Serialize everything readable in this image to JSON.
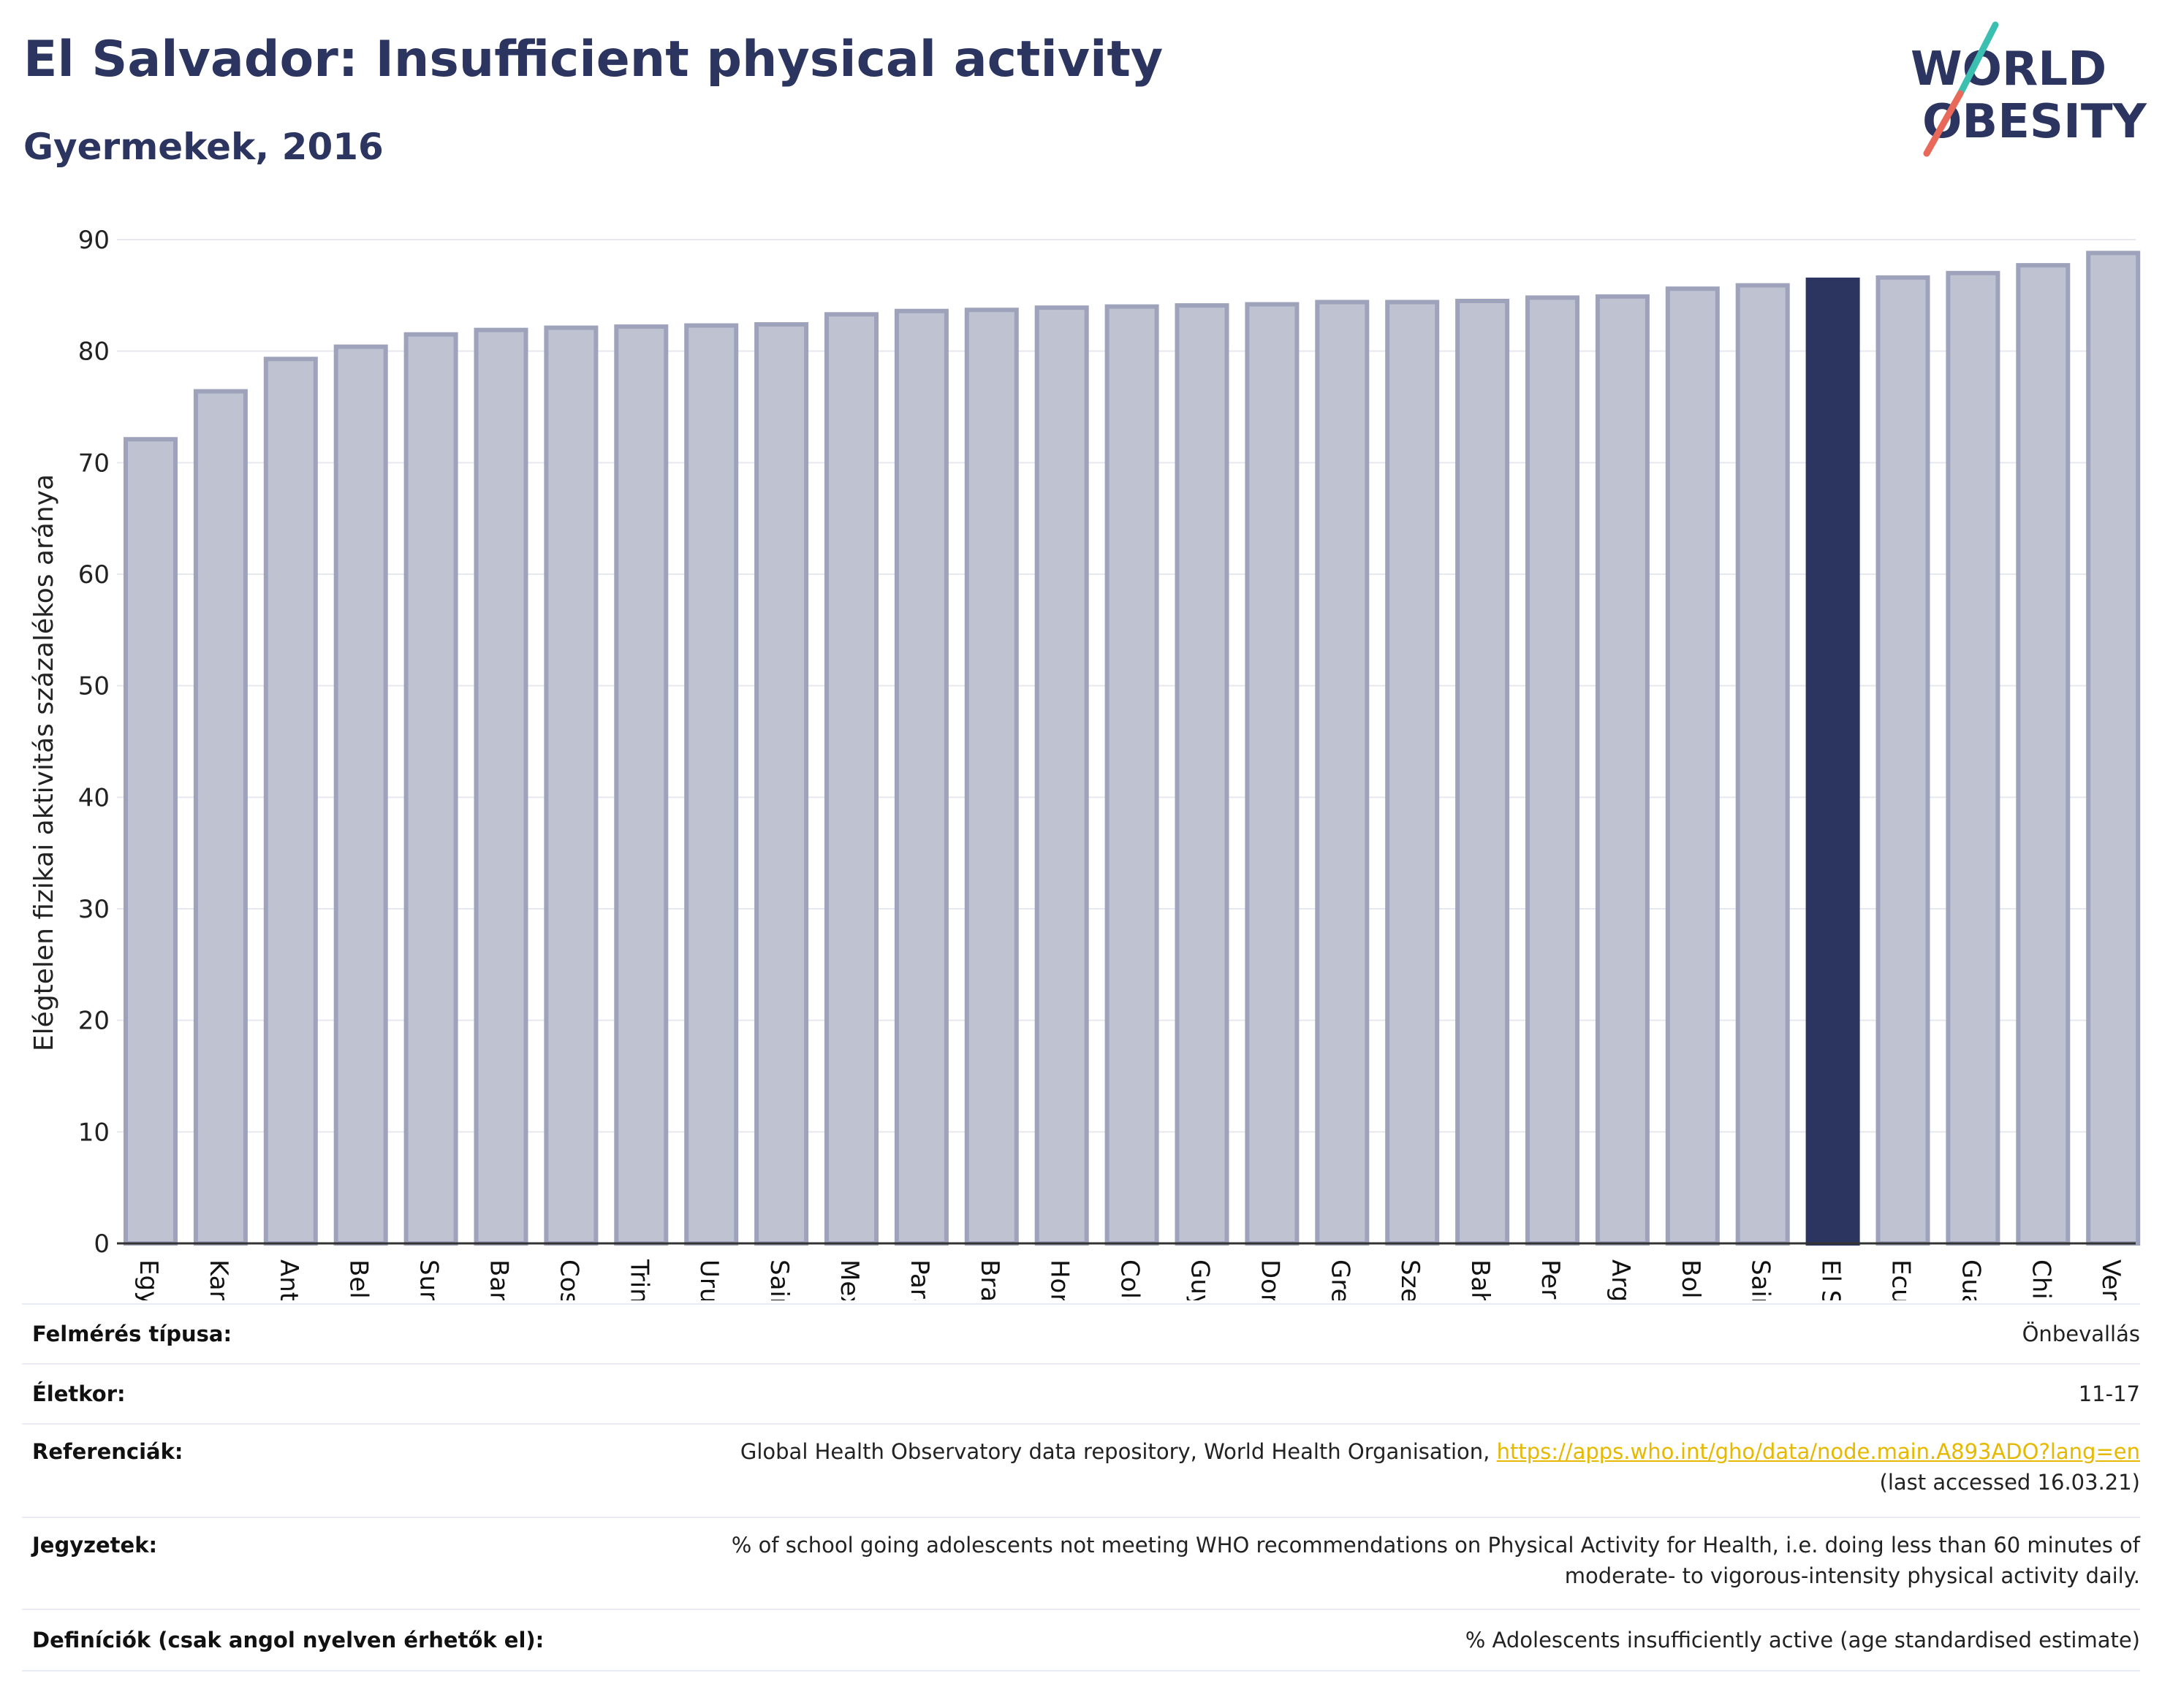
{
  "header": {
    "title": "El Salvador: Insufficient physical activity",
    "subtitle": "Gyermekek, 2016"
  },
  "logo": {
    "line1": "WORLD",
    "line2": "OBESITY",
    "text_color": "#2b3560",
    "slash_colors": [
      "#3bbfb0",
      "#e8685a"
    ]
  },
  "chart_data": {
    "type": "bar",
    "ylabel": "Elégtelen fizikai aktivitás százalékos aránya",
    "xlabel": "",
    "ylim": [
      0,
      90
    ],
    "yticks": [
      0,
      10,
      20,
      30,
      40,
      50,
      60,
      70,
      80,
      90
    ],
    "grid": true,
    "highlight": "El Salvador",
    "colors": {
      "default": "#bfc2d0",
      "default_border": "#9ea3bb",
      "highlight": "#2b3560"
    },
    "categories": [
      "Egyesült Államok",
      "Kanada",
      "Antigua és Barbuda",
      "Belize",
      "Suriname",
      "Barbados",
      "Costa Rica",
      "Trinidad és Tobago",
      "Uruguay",
      "Saint Kitts és Nevis",
      "Mexikó",
      "Paraguay",
      "Brazília",
      "Honduras",
      "Colombia",
      "Guyana",
      "Dominikai Közösség",
      "Grenada",
      "Szent Lucia",
      "Bahama-szigetek",
      "Peru",
      "Argentína",
      "Bolívia",
      "Saint Vincent és a Grenadine-szigetek",
      "El Salvador",
      "Ecuador",
      "Guatemala",
      "Chile",
      "Venezuela"
    ],
    "values": [
      72.1,
      76.4,
      79.3,
      80.4,
      81.5,
      81.9,
      82.1,
      82.2,
      82.3,
      82.4,
      83.3,
      83.6,
      83.7,
      83.9,
      84.0,
      84.1,
      84.2,
      84.4,
      84.4,
      84.5,
      84.8,
      84.9,
      85.6,
      85.9,
      86.4,
      86.6,
      87.0,
      87.7,
      88.8
    ]
  },
  "footer": {
    "survey_type": {
      "label": "Felmérés típusa:",
      "value": "Önbevallás"
    },
    "age": {
      "label": "Életkor:",
      "value": "11-17"
    },
    "references": {
      "label": "Referenciák:",
      "text": "Global Health Observatory data repository, World Health Organisation, ",
      "link": "https://apps.who.int/gho/data/node.main.A893ADO?lang=en",
      "accessed": "(last accessed 16.03.21)"
    },
    "notes": {
      "label": "Jegyzetek:",
      "line1": "% of school going adolescents not meeting WHO recommendations on Physical Activity for Health, i.e. doing less than 60 minutes of",
      "line2": "moderate- to vigorous-intensity physical activity daily."
    },
    "definitions": {
      "label": "Definíciók (csak angol nyelven érhetők el):",
      "value": "% Adolescents insufficiently active (age standardised estimate)"
    }
  }
}
